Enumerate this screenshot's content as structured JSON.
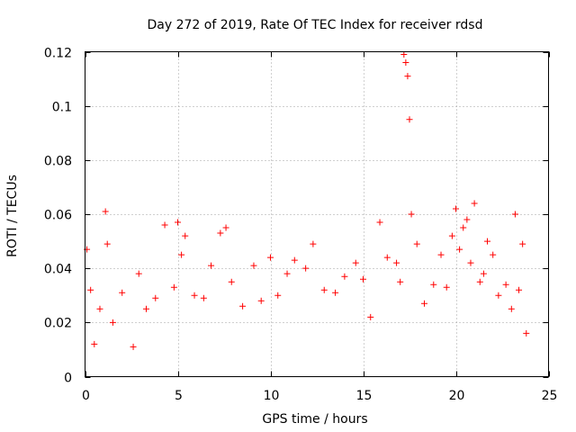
{
  "chart_data": {
    "type": "scatter",
    "title": "Day 272 of 2019, Rate Of TEC Index for receiver rdsd",
    "xlabel": "GPS time / hours",
    "ylabel": "ROTI / TECUs",
    "xlim": [
      0,
      25
    ],
    "ylim": [
      0,
      0.12
    ],
    "x_ticks": [
      0,
      5,
      10,
      15,
      20,
      25
    ],
    "x_tick_labels": [
      "0",
      "5",
      "10",
      "15",
      "20",
      "25"
    ],
    "y_ticks": [
      0,
      0.02,
      0.04,
      0.06,
      0.08,
      0.1,
      0.12
    ],
    "y_tick_labels": [
      "0",
      "0.02",
      "0.04",
      "0.06",
      "0.08",
      "0.1",
      "0.12"
    ],
    "grid": true,
    "marker": "+",
    "marker_color": "#ff0000",
    "series": [
      {
        "name": "ROTI",
        "x": [
          0.1,
          0.3,
          0.5,
          0.8,
          1.1,
          1.2,
          1.5,
          2.0,
          2.6,
          2.9,
          3.3,
          3.8,
          4.3,
          4.8,
          5.0,
          5.2,
          5.4,
          5.9,
          6.4,
          6.8,
          7.3,
          7.6,
          7.9,
          8.5,
          9.1,
          9.5,
          10.0,
          10.4,
          10.9,
          11.3,
          11.9,
          12.3,
          12.9,
          13.5,
          14.0,
          14.6,
          15.0,
          15.4,
          15.9,
          16.3,
          16.8,
          17.0,
          17.2,
          17.3,
          17.4,
          17.5,
          17.6,
          17.9,
          18.3,
          18.8,
          19.2,
          19.5,
          19.8,
          20.0,
          20.2,
          20.4,
          20.6,
          20.8,
          21.0,
          21.3,
          21.5,
          21.7,
          22.0,
          22.3,
          22.7,
          23.0,
          23.2,
          23.4,
          23.6,
          23.8
        ],
        "y": [
          0.047,
          0.032,
          0.012,
          0.025,
          0.061,
          0.049,
          0.02,
          0.031,
          0.011,
          0.038,
          0.025,
          0.029,
          0.056,
          0.033,
          0.057,
          0.045,
          0.052,
          0.03,
          0.029,
          0.041,
          0.053,
          0.055,
          0.035,
          0.026,
          0.041,
          0.028,
          0.044,
          0.03,
          0.038,
          0.043,
          0.04,
          0.049,
          0.032,
          0.031,
          0.037,
          0.042,
          0.036,
          0.022,
          0.057,
          0.044,
          0.042,
          0.035,
          0.119,
          0.116,
          0.111,
          0.095,
          0.06,
          0.049,
          0.027,
          0.034,
          0.045,
          0.033,
          0.052,
          0.062,
          0.047,
          0.055,
          0.058,
          0.042,
          0.064,
          0.035,
          0.038,
          0.05,
          0.045,
          0.03,
          0.034,
          0.025,
          0.06,
          0.032,
          0.049,
          0.016
        ]
      }
    ]
  }
}
